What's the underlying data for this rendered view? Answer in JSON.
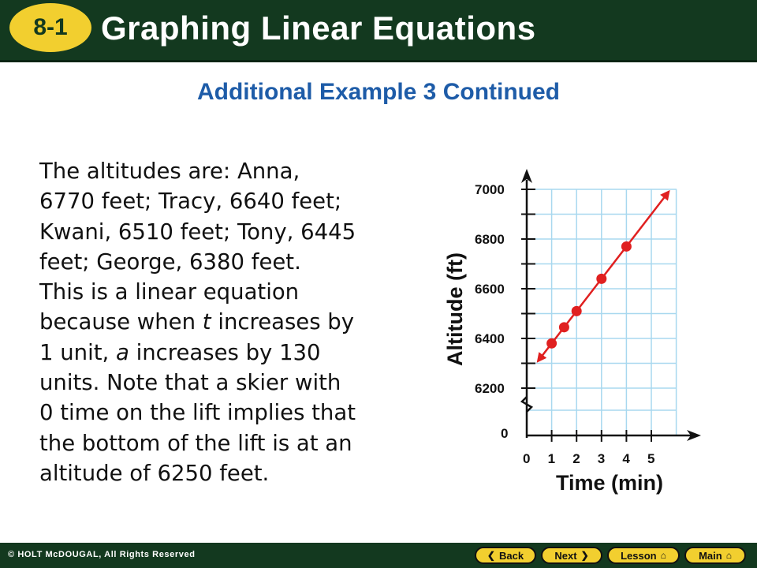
{
  "header": {
    "badge": "8-1",
    "title": "Graphing Linear Equations"
  },
  "subtitle": "Additional Example 3 Continued",
  "body": {
    "line1": "The altitudes are: Anna,",
    "line2": "6770 feet; Tracy, 6640 feet;",
    "line3": "Kwani, 6510 feet; Tony, 6445",
    "line4": "feet; George, 6380 feet.",
    "line5": "This is a linear equation",
    "line6_a": "because when ",
    "line6_var": "t",
    "line6_b": " increases by",
    "line7_a": "1 unit, ",
    "line7_var": "a",
    "line7_b": " increases by 130",
    "line8": "units. Note that a skier with",
    "line9": "0 time on the lift implies that",
    "line10": "the bottom of the lift is at an",
    "line11": "altitude of 6250 feet."
  },
  "graph": {
    "x_ticks": [
      "0",
      "1",
      "2",
      "3",
      "4",
      "5"
    ],
    "y_ticks": [
      "7000",
      "6800",
      "6600",
      "6400",
      "6200"
    ],
    "y_zero": "0",
    "xlabel": "Time (min)",
    "ylabel": "Altitude (ft)",
    "points": [
      {
        "t": 1,
        "a": 6380
      },
      {
        "t": 1.5,
        "a": 6445
      },
      {
        "t": 2,
        "a": 6510
      },
      {
        "t": 3,
        "a": 6640
      },
      {
        "t": 4,
        "a": 6770
      }
    ],
    "line_color": "#e02020",
    "grid_color": "#a8d8ef"
  },
  "footer": {
    "copyright": "© HOLT McDOUGAL, All Rights Reserved",
    "back": "Back",
    "next": "Next",
    "lesson": "Lesson",
    "main": "Main"
  }
}
